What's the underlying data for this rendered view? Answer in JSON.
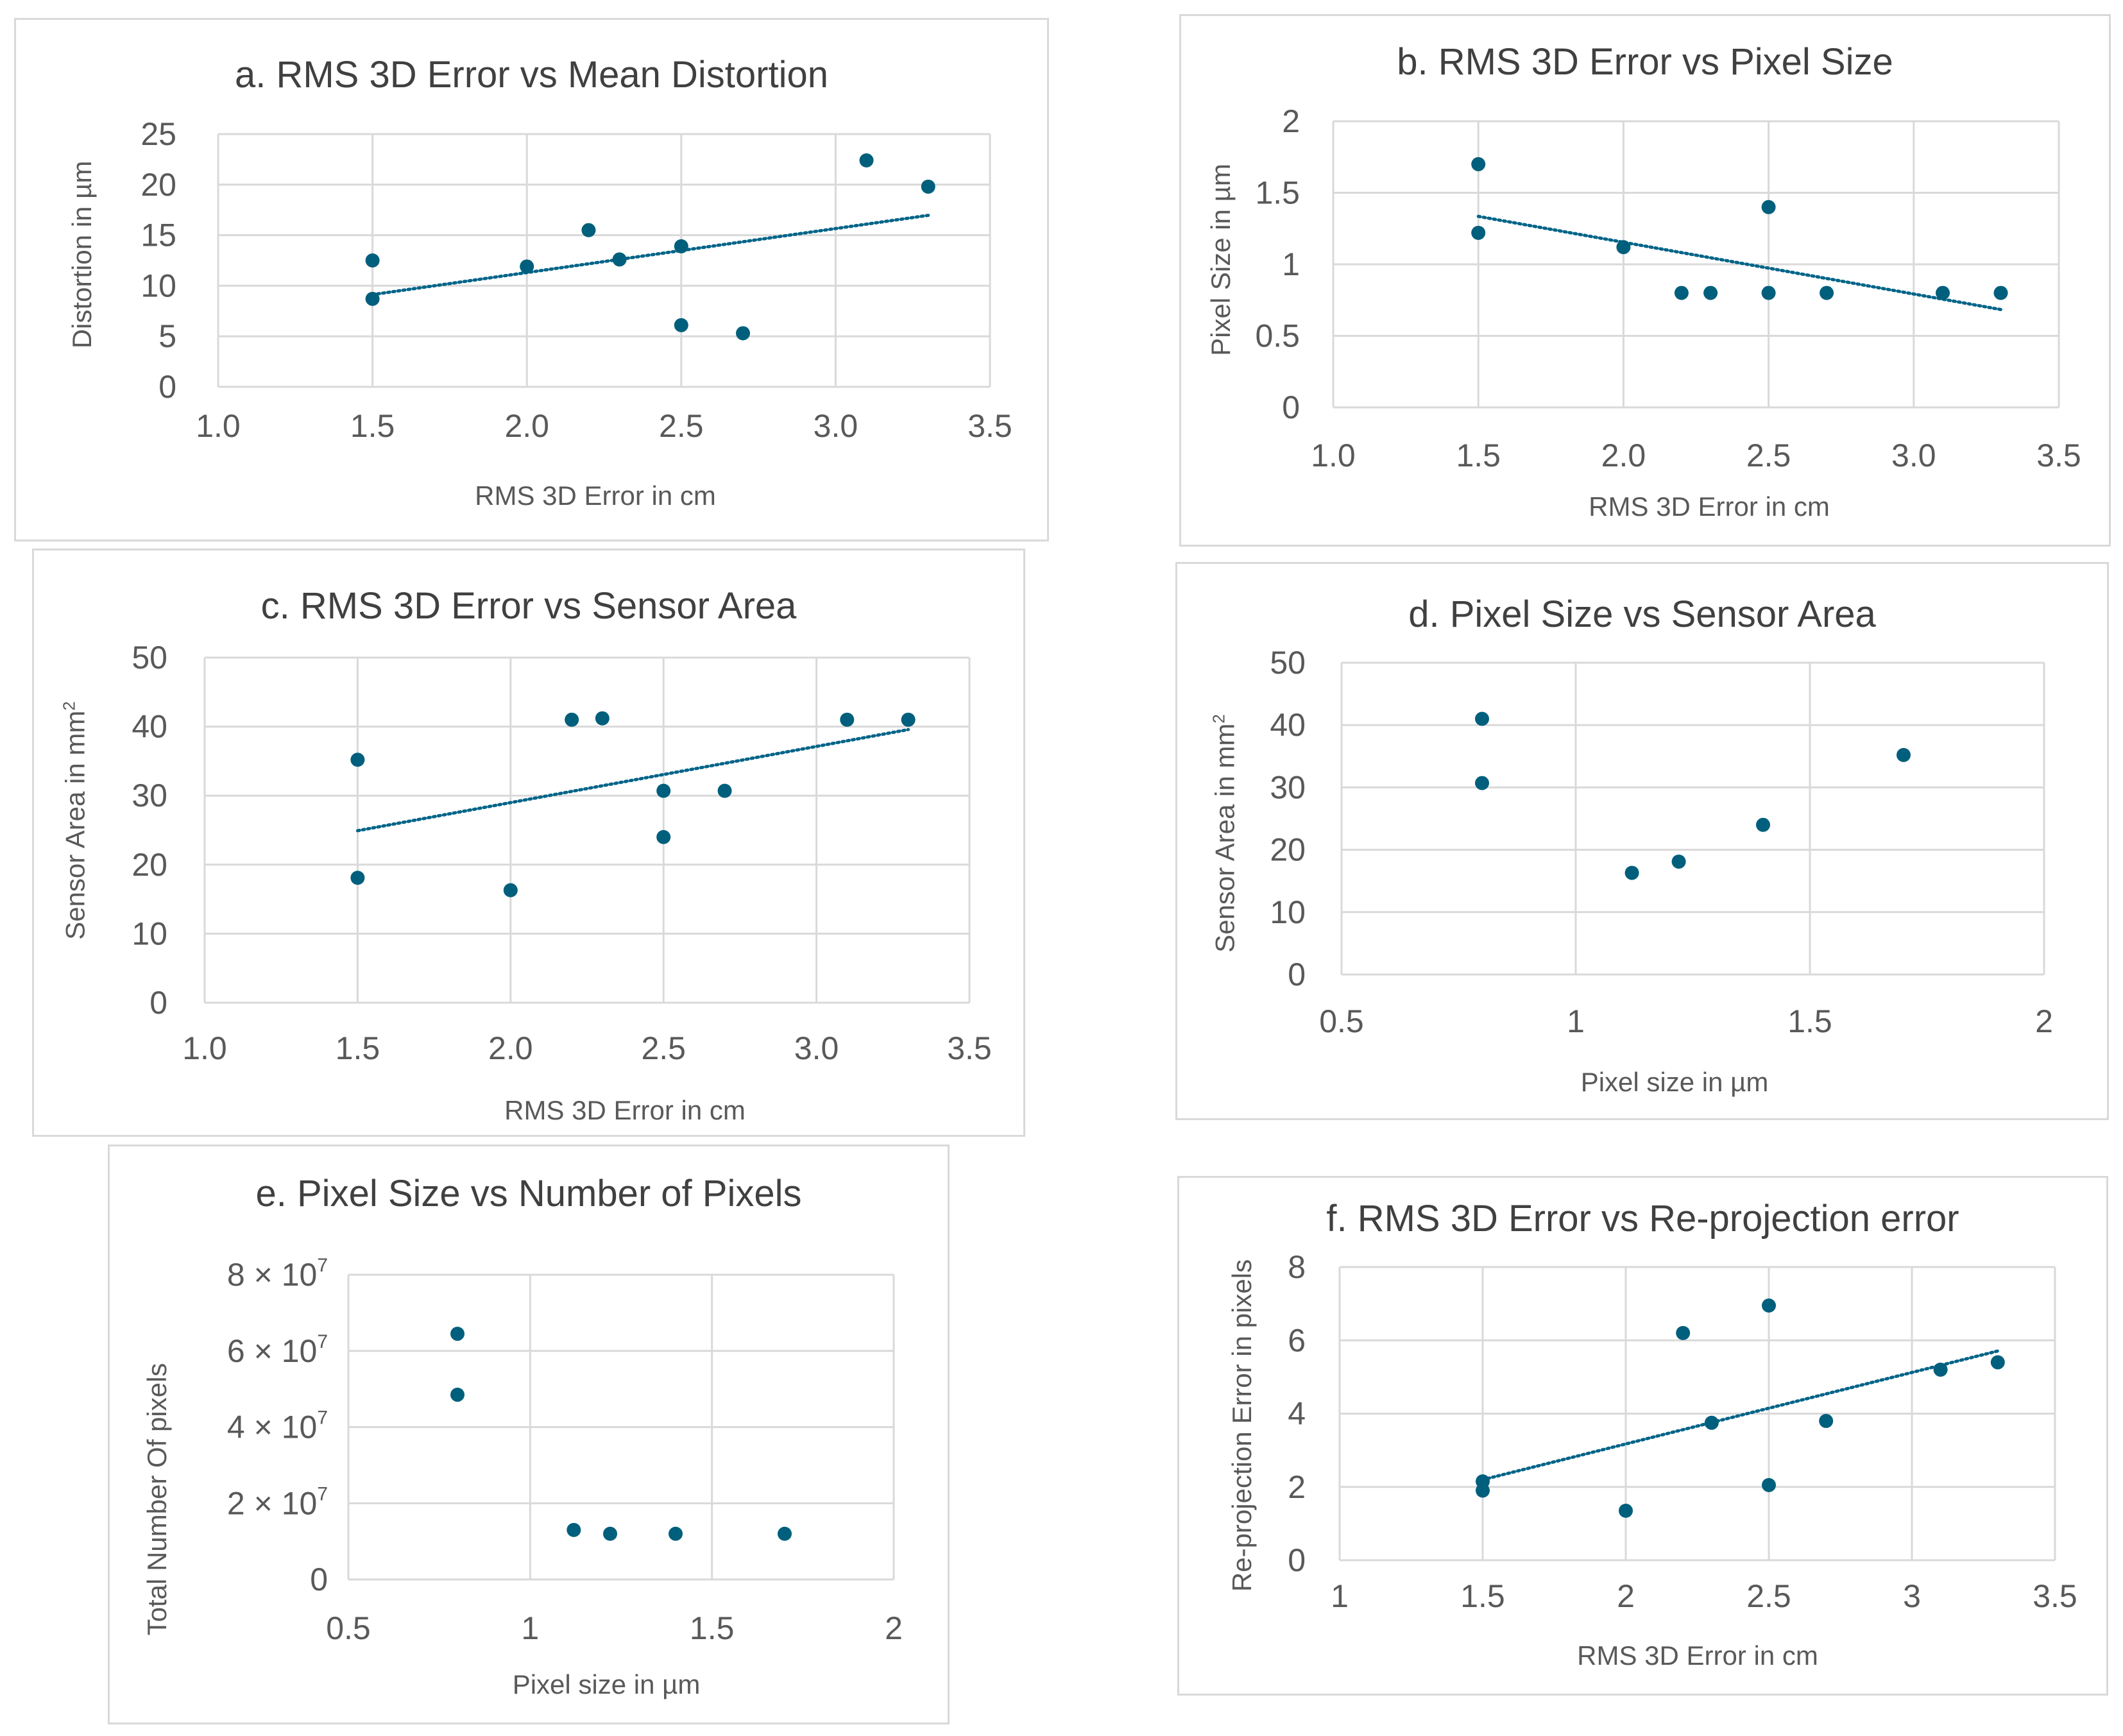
{
  "colors": {
    "marker": "#005F7C",
    "trendline": "#006488",
    "gridline": "#d9d9d9",
    "text": "#595959"
  },
  "chart_data": [
    {
      "id": "a",
      "type": "scatter",
      "title": "a. RMS 3D Error vs Mean Distortion",
      "xlabel": "RMS 3D Error in cm",
      "ylabel": "Distortion in µm",
      "xlim": [
        1.0,
        3.5
      ],
      "ylim": [
        0,
        25
      ],
      "xticks": [
        1.0,
        1.5,
        2.0,
        2.5,
        3.0,
        3.5
      ],
      "xtick_labels": [
        "1.0",
        "1.5",
        "2.0",
        "2.5",
        "3.0",
        "3.5"
      ],
      "yticks": [
        0,
        5,
        10,
        15,
        20,
        25
      ],
      "ytick_labels": [
        "0",
        "5",
        "10",
        "15",
        "20",
        "25"
      ],
      "grid": true,
      "trendline": "linear",
      "points": [
        [
          1.5,
          12.5
        ],
        [
          1.5,
          8.7
        ],
        [
          2.0,
          11.9
        ],
        [
          2.2,
          15.5
        ],
        [
          2.3,
          12.6
        ],
        [
          2.5,
          13.9
        ],
        [
          2.5,
          6.1
        ],
        [
          2.7,
          5.3
        ],
        [
          3.1,
          22.4
        ],
        [
          3.3,
          19.8
        ]
      ]
    },
    {
      "id": "b",
      "type": "scatter",
      "title": "b. RMS 3D Error vs Pixel Size",
      "xlabel": "RMS 3D Error in cm",
      "ylabel": "Pixel Size in µm",
      "xlim": [
        1.0,
        3.5
      ],
      "ylim": [
        0,
        2
      ],
      "xticks": [
        1.0,
        1.5,
        2.0,
        2.5,
        3.0,
        3.5
      ],
      "xtick_labels": [
        "1.0",
        "1.5",
        "2.0",
        "2.5",
        "3.0",
        "3.5"
      ],
      "yticks": [
        0,
        0.5,
        1,
        1.5,
        2
      ],
      "ytick_labels": [
        "0",
        "0.5",
        "1",
        "1.5",
        "2"
      ],
      "grid": true,
      "trendline": "linear",
      "points": [
        [
          1.5,
          1.7
        ],
        [
          1.5,
          1.22
        ],
        [
          2.0,
          1.12
        ],
        [
          2.2,
          0.8
        ],
        [
          2.3,
          0.8
        ],
        [
          2.5,
          1.4
        ],
        [
          2.5,
          0.8
        ],
        [
          2.7,
          0.8
        ],
        [
          3.1,
          0.8
        ],
        [
          3.3,
          0.8
        ]
      ]
    },
    {
      "id": "c",
      "type": "scatter",
      "title": "c. RMS 3D Error vs Sensor Area",
      "xlabel": "RMS 3D Error in cm",
      "ylabel": "Sensor Area in mm",
      "ylabel_sup": "2",
      "xlim": [
        1.0,
        3.5
      ],
      "ylim": [
        0,
        50
      ],
      "xticks": [
        1.0,
        1.5,
        2.0,
        2.5,
        3.0,
        3.5
      ],
      "xtick_labels": [
        "1.0",
        "1.5",
        "2.0",
        "2.5",
        "3.0",
        "3.5"
      ],
      "yticks": [
        0,
        10,
        20,
        30,
        40,
        50
      ],
      "ytick_labels": [
        "0",
        "10",
        "20",
        "30",
        "40",
        "50"
      ],
      "grid": true,
      "trendline": "linear",
      "points": [
        [
          1.5,
          35.2
        ],
        [
          1.5,
          18.1
        ],
        [
          2.0,
          16.3
        ],
        [
          2.2,
          41.0
        ],
        [
          2.3,
          41.2
        ],
        [
          2.5,
          30.7
        ],
        [
          2.5,
          24.0
        ],
        [
          2.7,
          30.7
        ],
        [
          3.1,
          41.0
        ],
        [
          3.3,
          41.0
        ]
      ]
    },
    {
      "id": "d",
      "type": "scatter",
      "title": "d. Pixel Size vs Sensor Area",
      "xlabel": "Pixel size in µm",
      "ylabel": "Sensor Area in mm",
      "ylabel_sup": "2",
      "xlim": [
        0.5,
        2
      ],
      "ylim": [
        0,
        50
      ],
      "xticks": [
        0.5,
        1,
        1.5,
        2
      ],
      "xtick_labels": [
        "0.5",
        "1",
        "1.5",
        "2"
      ],
      "yticks": [
        0,
        10,
        20,
        30,
        40,
        50
      ],
      "ytick_labels": [
        "0",
        "10",
        "20",
        "30",
        "40",
        "50"
      ],
      "grid": true,
      "trendline": "none",
      "points": [
        [
          0.8,
          41.0
        ],
        [
          0.8,
          30.7
        ],
        [
          1.12,
          16.3
        ],
        [
          1.22,
          18.1
        ],
        [
          1.4,
          24.0
        ],
        [
          1.7,
          35.2
        ]
      ]
    },
    {
      "id": "e",
      "type": "scatter",
      "title": "e. Pixel Size vs Number of Pixels",
      "xlabel": "Pixel size in µm",
      "ylabel": "Total Number Of pixels",
      "xlim": [
        0.5,
        2
      ],
      "ylim": [
        0,
        80000000
      ],
      "xticks": [
        0.5,
        1,
        1.5,
        2
      ],
      "xtick_labels": [
        "0.5",
        "1",
        "1.5",
        "2"
      ],
      "yticks": [
        0,
        20000000,
        40000000,
        60000000,
        80000000
      ],
      "ytick_labels": [
        "0",
        "2 × 10",
        "4 × 10",
        "6 × 10",
        "8 × 10"
      ],
      "ytick_sups": [
        "",
        "7",
        "7",
        "7",
        "7"
      ],
      "grid": true,
      "trendline": "none",
      "points": [
        [
          0.8,
          64500000
        ],
        [
          0.8,
          48500000
        ],
        [
          1.12,
          13000000
        ],
        [
          1.22,
          12000000
        ],
        [
          1.4,
          12000000
        ],
        [
          1.7,
          12000000
        ]
      ]
    },
    {
      "id": "f",
      "type": "scatter",
      "title": "f. RMS 3D Error vs Re-projection error",
      "xlabel": "RMS 3D Error in cm",
      "ylabel": "Re-projection Error in pixels",
      "xlim": [
        1,
        3.5
      ],
      "ylim": [
        0,
        8
      ],
      "xticks": [
        1,
        1.5,
        2,
        2.5,
        3,
        3.5
      ],
      "xtick_labels": [
        "1",
        "1.5",
        "2",
        "2.5",
        "3",
        "3.5"
      ],
      "yticks": [
        0,
        2,
        4,
        6,
        8
      ],
      "ytick_labels": [
        "0",
        "2",
        "4",
        "6",
        "8"
      ],
      "grid": true,
      "trendline": "linear",
      "points": [
        [
          1.5,
          2.15
        ],
        [
          1.5,
          1.9
        ],
        [
          2.0,
          1.35
        ],
        [
          2.2,
          6.2
        ],
        [
          2.3,
          3.75
        ],
        [
          2.5,
          6.95
        ],
        [
          2.5,
          2.05
        ],
        [
          2.7,
          3.8
        ],
        [
          3.1,
          5.2
        ],
        [
          3.3,
          5.4
        ]
      ]
    }
  ]
}
